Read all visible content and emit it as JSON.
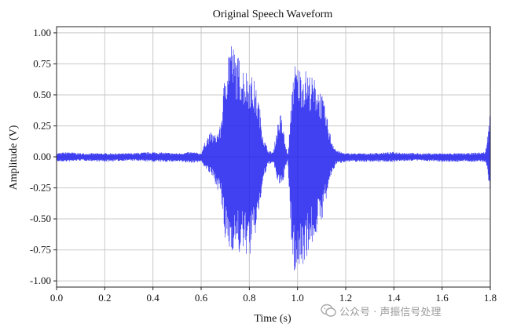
{
  "chart_data": {
    "type": "line",
    "title": "Original Speech Waveform",
    "xlabel": "Time (s)",
    "ylabel": "Amplitude (V)",
    "xlim": [
      0.0,
      1.8
    ],
    "ylim": [
      -1.05,
      1.05
    ],
    "xticks": [
      0.0,
      0.2,
      0.4,
      0.6,
      0.8,
      1.0,
      1.2,
      1.4,
      1.6,
      1.8
    ],
    "xtick_labels": [
      "0.0",
      "0.2",
      "0.4",
      "0.6",
      "0.8",
      "1.0",
      "1.2",
      "1.4",
      "1.6",
      "1.8"
    ],
    "yticks": [
      -1.0,
      -0.75,
      -0.5,
      -0.25,
      0.0,
      0.25,
      0.5,
      0.75,
      1.0
    ],
    "ytick_labels": [
      "-1.00",
      "-0.75",
      "-0.50",
      "-0.25",
      "0.00",
      "0.25",
      "0.50",
      "0.75",
      "1.00"
    ],
    "grid": true,
    "series": [
      {
        "color": "#2020f0",
        "envelope": {
          "t": [
            0.0,
            0.05,
            0.1,
            0.2,
            0.3,
            0.4,
            0.5,
            0.56,
            0.6,
            0.62,
            0.64,
            0.66,
            0.68,
            0.7,
            0.72,
            0.74,
            0.76,
            0.78,
            0.8,
            0.82,
            0.84,
            0.86,
            0.88,
            0.9,
            0.91,
            0.92,
            0.93,
            0.94,
            0.95,
            0.96,
            0.97,
            0.98,
            0.99,
            1.0,
            1.02,
            1.04,
            1.06,
            1.08,
            1.1,
            1.12,
            1.14,
            1.16,
            1.18,
            1.2,
            1.3,
            1.4,
            1.5,
            1.6,
            1.7,
            1.78,
            1.8
          ],
          "upper": [
            0.03,
            0.04,
            0.03,
            0.03,
            0.03,
            0.04,
            0.03,
            0.04,
            0.03,
            0.15,
            0.2,
            0.18,
            0.25,
            0.72,
            1.0,
            0.85,
            0.8,
            0.72,
            0.7,
            0.62,
            0.45,
            0.15,
            0.05,
            0.04,
            0.18,
            0.3,
            0.35,
            0.25,
            0.1,
            0.02,
            0.3,
            0.7,
            0.76,
            0.74,
            0.72,
            0.7,
            0.65,
            0.62,
            0.52,
            0.35,
            0.15,
            0.06,
            0.04,
            0.03,
            0.03,
            0.04,
            0.03,
            0.03,
            0.03,
            0.04,
            0.38
          ],
          "lower": [
            -0.04,
            -0.04,
            -0.03,
            -0.04,
            -0.03,
            -0.04,
            -0.04,
            -0.05,
            -0.04,
            -0.1,
            -0.15,
            -0.22,
            -0.32,
            -0.72,
            -0.78,
            -0.74,
            -0.8,
            -0.78,
            -0.82,
            -0.7,
            -0.45,
            -0.18,
            -0.06,
            -0.05,
            -0.15,
            -0.22,
            -0.28,
            -0.2,
            -0.1,
            -0.03,
            -0.55,
            -0.88,
            -0.97,
            -0.95,
            -0.88,
            -0.8,
            -0.72,
            -0.62,
            -0.52,
            -0.35,
            -0.15,
            -0.06,
            -0.05,
            -0.04,
            -0.04,
            -0.04,
            -0.03,
            -0.04,
            -0.04,
            -0.04,
            -0.28
          ]
        }
      }
    ]
  },
  "watermark": {
    "text": "公众号 · 声振信号处理",
    "icon": "wechat-icon"
  }
}
